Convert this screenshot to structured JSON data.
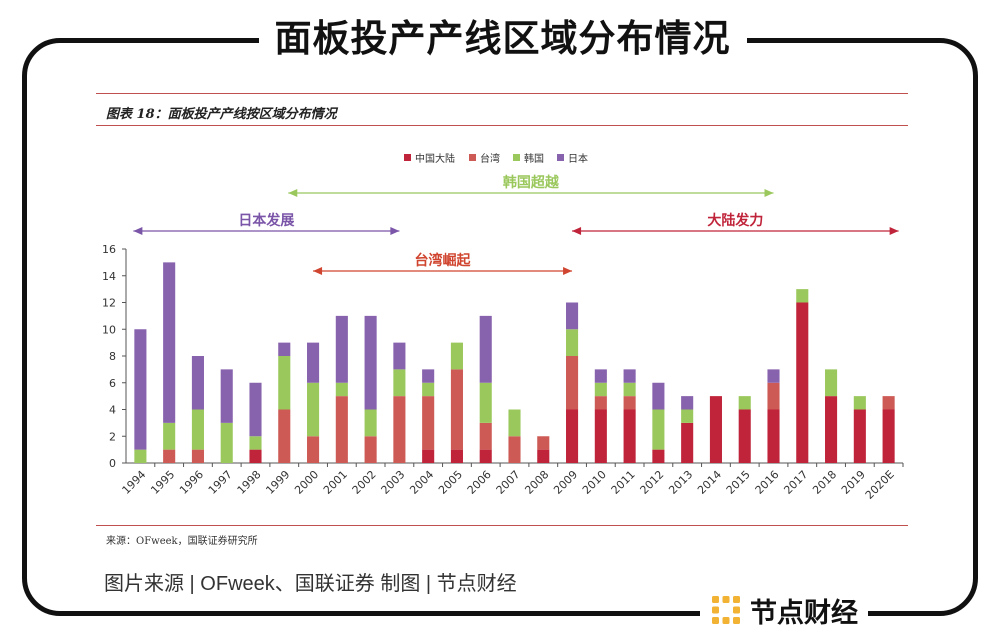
{
  "headline": "面板投产产线区域分布情况",
  "figure_title": "图表 18：面板投产产线按区域分布情况",
  "source": "来源：OFweek，国联证券研究所",
  "credit": "图片来源 | OFweek、国联证券   制图 | 节点财经",
  "brand": {
    "name": "节点财经",
    "logo_icon": "dot-grid-logo-icon",
    "logo_color": "#f2b233"
  },
  "chart_data": {
    "type": "bar",
    "stacked": true,
    "categories": [
      "1994",
      "1995",
      "1996",
      "1997",
      "1998",
      "1999",
      "2000",
      "2001",
      "2002",
      "2003",
      "2004",
      "2005",
      "2006",
      "2007",
      "2008",
      "2009",
      "2010",
      "2011",
      "2012",
      "2013",
      "2014",
      "2015",
      "2016",
      "2017",
      "2018",
      "2019",
      "2020E"
    ],
    "series": [
      {
        "name": "中国大陆",
        "color": "#c0243a",
        "values": [
          0,
          0,
          0,
          0,
          1,
          0,
          0,
          0,
          0,
          0,
          1,
          1,
          1,
          0,
          1,
          4,
          4,
          4,
          1,
          3,
          5,
          4,
          4,
          12,
          5,
          4,
          4
        ]
      },
      {
        "name": "台湾",
        "color": "#cd5a55",
        "values": [
          0,
          1,
          1,
          0,
          0,
          4,
          2,
          5,
          2,
          5,
          4,
          6,
          2,
          2,
          1,
          4,
          1,
          1,
          0,
          0,
          0,
          0,
          2,
          0,
          0,
          0,
          1
        ]
      },
      {
        "name": "韩国",
        "color": "#9bc85d",
        "values": [
          1,
          2,
          3,
          3,
          1,
          4,
          4,
          1,
          2,
          2,
          1,
          2,
          3,
          2,
          0,
          2,
          1,
          1,
          3,
          1,
          0,
          1,
          0,
          1,
          2,
          1,
          0
        ]
      },
      {
        "name": "日本",
        "color": "#8762ad",
        "values": [
          9,
          12,
          4,
          4,
          4,
          1,
          3,
          5,
          7,
          2,
          1,
          0,
          5,
          0,
          0,
          2,
          1,
          1,
          2,
          1,
          0,
          0,
          1,
          0,
          0,
          0,
          0
        ]
      }
    ],
    "ylim": [
      0,
      16
    ],
    "yticks": [
      0,
      2,
      4,
      6,
      8,
      10,
      12,
      14,
      16
    ],
    "legend_position": "top-center",
    "grid": false,
    "annotations": [
      {
        "label": "韩国超越",
        "from": "1999",
        "to": "2016",
        "color": "#9bc85d"
      },
      {
        "label": "日本发展",
        "from": "1994",
        "to": "2003",
        "color": "#7a55a8"
      },
      {
        "label": "台湾崛起",
        "from": "2000",
        "to": "2009",
        "color": "#d0452f"
      },
      {
        "label": "大陆发力",
        "from": "2009",
        "to": "2020E",
        "color": "#c0243a"
      }
    ]
  }
}
